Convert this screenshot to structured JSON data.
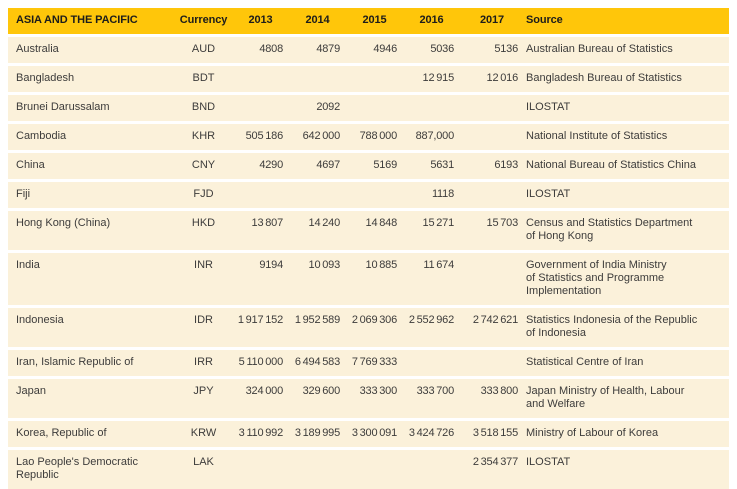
{
  "colors": {
    "header_bg": "#ffc60a",
    "header_text": "#1d1d1b",
    "row_bg": "#fbf1da",
    "body_text": "#3d3c3b",
    "page_bg": "#ffffff"
  },
  "table": {
    "header": {
      "region_label": "ASIA AND THE PACIFIC",
      "currency_label": "Currency",
      "year_labels": [
        "2013",
        "2014",
        "2015",
        "2016",
        "2017"
      ],
      "source_label": "Source"
    },
    "rows": [
      {
        "country": "Australia",
        "currency": "AUD",
        "values": [
          "4808",
          "4879",
          "4946",
          "5036",
          "5136"
        ],
        "source": "Australian Bureau of Statistics"
      },
      {
        "country": "Bangladesh",
        "currency": "BDT",
        "values": [
          "",
          "",
          "",
          "12 915",
          "12 016"
        ],
        "source": "Bangladesh Bureau of Statistics"
      },
      {
        "country": "Brunei Darussalam",
        "currency": "BND",
        "values": [
          "",
          "2092",
          "",
          "",
          ""
        ],
        "source": "ILOSTAT"
      },
      {
        "country": "Cambodia",
        "currency": "KHR",
        "values": [
          "505 186",
          "642 000",
          "788 000",
          "887,000",
          ""
        ],
        "source": "National Institute of Statistics"
      },
      {
        "country": "China",
        "currency": "CNY",
        "values": [
          "4290",
          "4697",
          "5169",
          "5631",
          "6193"
        ],
        "source": "National Bureau of Statistics China"
      },
      {
        "country": "Fiji",
        "currency": "FJD",
        "values": [
          "",
          "",
          "",
          "1118",
          ""
        ],
        "source": "ILOSTAT"
      },
      {
        "country": "Hong Kong (China)",
        "currency": "HKD",
        "values": [
          "13 807",
          "14 240",
          "14 848",
          "15 271",
          "15 703"
        ],
        "source": "Census and Statistics Department\nof Hong Kong"
      },
      {
        "country": "India",
        "currency": "INR",
        "values": [
          "9194",
          "10 093",
          "10 885",
          "11 674",
          ""
        ],
        "source": "Government of India Ministry\nof Statistics and Programme\nImplementation"
      },
      {
        "country": "Indonesia",
        "currency": "IDR",
        "values": [
          "1 917 152",
          "1 952 589",
          "2 069 306",
          "2 552 962",
          "2 742 621"
        ],
        "source": "Statistics Indonesia of the Republic\nof Indonesia"
      },
      {
        "country": "Iran, Islamic Republic of",
        "currency": "IRR",
        "values": [
          "5 110 000",
          "6 494 583",
          "7 769 333",
          "",
          ""
        ],
        "source": "Statistical Centre of Iran"
      },
      {
        "country": "Japan",
        "currency": "JPY",
        "values": [
          "324 000",
          "329 600",
          "333 300",
          "333 700",
          "333 800"
        ],
        "source": "Japan Ministry of Health, Labour\nand Welfare"
      },
      {
        "country": "Korea, Republic of",
        "currency": "KRW",
        "values": [
          "3 110 992",
          "3 189 995",
          "3 300 091",
          "3 424 726",
          "3 518 155"
        ],
        "source": "Ministry of Labour of Korea"
      },
      {
        "country": "Lao People's Democratic\nRepublic",
        "currency": "LAK",
        "values": [
          "",
          "",
          "",
          "",
          "2 354 377"
        ],
        "source": "ILOSTAT"
      }
    ]
  }
}
